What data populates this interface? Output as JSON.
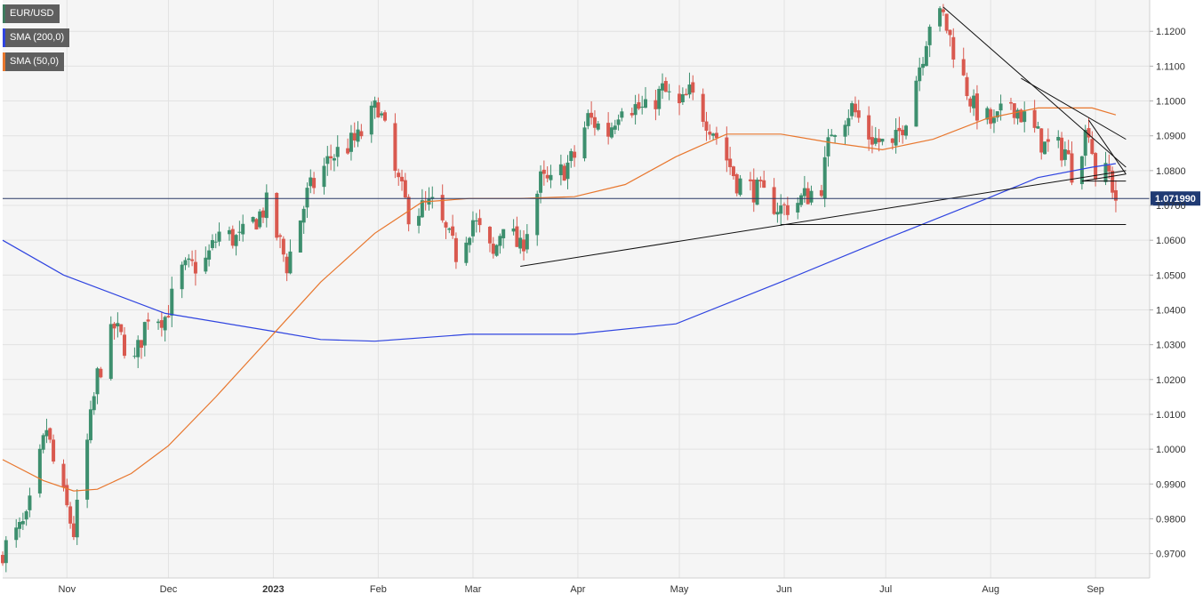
{
  "legend": [
    {
      "label": "EUR/USD",
      "color": "#3d7a5e"
    },
    {
      "label": "SMA (200,0)",
      "color": "#2f44e0"
    },
    {
      "label": "SMA (50,0)",
      "color": "#e8772e"
    }
  ],
  "price_label": "1.071990",
  "chart_data": {
    "type": "candlestick",
    "ylim": [
      0.963,
      1.129
    ],
    "yticks": [
      {
        "value": 0.97,
        "label": "0.9700"
      },
      {
        "value": 0.98,
        "label": "0.9800"
      },
      {
        "value": 0.99,
        "label": "0.9900"
      },
      {
        "value": 1.0,
        "label": "1.0000"
      },
      {
        "value": 1.01,
        "label": "1.0100"
      },
      {
        "value": 1.02,
        "label": "1.0200"
      },
      {
        "value": 1.03,
        "label": "1.0300"
      },
      {
        "value": 1.04,
        "label": "1.0400"
      },
      {
        "value": 1.05,
        "label": "1.0500"
      },
      {
        "value": 1.06,
        "label": "1.0600"
      },
      {
        "value": 1.07,
        "label": "1.0700"
      },
      {
        "value": 1.08,
        "label": "1.0800"
      },
      {
        "value": 1.09,
        "label": "1.0900"
      },
      {
        "value": 1.1,
        "label": "1.1000"
      },
      {
        "value": 1.11,
        "label": "1.1100"
      },
      {
        "value": 1.12,
        "label": "1.1200"
      }
    ],
    "xlim": [
      "2022-10-13",
      "2023-09-17"
    ],
    "xticks": [
      {
        "date": "2022-11-01",
        "label": "Nov",
        "bold": false
      },
      {
        "date": "2022-12-01",
        "label": "Dec",
        "bold": false
      },
      {
        "date": "2023-01-01",
        "label": "2023",
        "bold": true
      },
      {
        "date": "2023-02-01",
        "label": "Feb",
        "bold": false
      },
      {
        "date": "2023-03-01",
        "label": "Mar",
        "bold": false
      },
      {
        "date": "2023-04-01",
        "label": "Apr",
        "bold": false
      },
      {
        "date": "2023-05-01",
        "label": "May",
        "bold": false
      },
      {
        "date": "2023-06-01",
        "label": "Jun",
        "bold": false
      },
      {
        "date": "2023-07-01",
        "label": "Jul",
        "bold": false
      },
      {
        "date": "2023-08-01",
        "label": "Aug",
        "bold": false
      },
      {
        "date": "2023-09-01",
        "label": "Sep",
        "bold": false
      }
    ],
    "current_price": 1.07199,
    "up_color": "#3d8f6e",
    "down_color": "#d9594f",
    "close_path": [
      [
        "2022-10-13",
        0.971
      ],
      [
        "2022-10-20",
        0.979
      ],
      [
        "2022-10-26",
        1.006
      ],
      [
        "2022-10-28",
        0.996
      ],
      [
        "2022-11-03",
        0.976
      ],
      [
        "2022-11-10",
        1.021
      ],
      [
        "2022-11-15",
        1.035
      ],
      [
        "2022-11-21",
        1.025
      ],
      [
        "2022-11-25",
        1.039
      ],
      [
        "2022-11-30",
        1.038
      ],
      [
        "2022-12-05",
        1.051
      ],
      [
        "2022-12-12",
        1.054
      ],
      [
        "2022-12-16",
        1.062
      ],
      [
        "2022-12-22",
        1.06
      ],
      [
        "2022-12-30",
        1.07
      ],
      [
        "2023-01-05",
        1.053
      ],
      [
        "2023-01-11",
        1.073
      ],
      [
        "2023-01-18",
        1.084
      ],
      [
        "2023-01-26",
        1.089
      ],
      [
        "2023-02-01",
        1.099
      ],
      [
        "2023-02-06",
        1.079
      ],
      [
        "2023-02-10",
        1.068
      ],
      [
        "2023-02-17",
        1.07
      ],
      [
        "2023-02-24",
        1.056
      ],
      [
        "2023-03-01",
        1.066
      ],
      [
        "2023-03-07",
        1.055
      ],
      [
        "2023-03-10",
        1.066
      ],
      [
        "2023-03-15",
        1.057
      ],
      [
        "2023-03-21",
        1.077
      ],
      [
        "2023-03-24",
        1.076
      ],
      [
        "2023-03-31",
        1.084
      ],
      [
        "2023-04-04",
        1.095
      ],
      [
        "2023-04-10",
        1.091
      ],
      [
        "2023-04-14",
        1.1
      ],
      [
        "2023-04-21",
        1.097
      ],
      [
        "2023-04-26",
        1.103
      ],
      [
        "2023-05-01",
        1.098
      ],
      [
        "2023-05-04",
        1.102
      ],
      [
        "2023-05-11",
        1.092
      ],
      [
        "2023-05-18",
        1.077
      ],
      [
        "2023-05-24",
        1.074
      ],
      [
        "2023-05-31",
        1.069
      ],
      [
        "2023-06-05",
        1.071
      ],
      [
        "2023-06-12",
        1.076
      ],
      [
        "2023-06-15",
        1.092
      ],
      [
        "2023-06-21",
        1.098
      ],
      [
        "2023-06-26",
        1.09
      ],
      [
        "2023-07-03",
        1.086
      ],
      [
        "2023-07-07",
        1.096
      ],
      [
        "2023-07-12",
        1.114
      ],
      [
        "2023-07-14",
        1.123
      ],
      [
        "2023-07-18",
        1.124
      ],
      [
        "2023-07-24",
        1.106
      ],
      [
        "2023-07-27",
        1.098
      ],
      [
        "2023-08-02",
        1.093
      ],
      [
        "2023-08-07",
        1.1
      ],
      [
        "2023-08-11",
        1.095
      ],
      [
        "2023-08-17",
        1.087
      ],
      [
        "2023-08-23",
        1.086
      ],
      [
        "2023-08-25",
        1.08
      ],
      [
        "2023-08-30",
        1.093
      ],
      [
        "2023-09-01",
        1.079
      ],
      [
        "2023-09-05",
        1.079
      ],
      [
        "2023-09-07",
        1.072
      ]
    ],
    "sma200": [
      [
        "2022-10-13",
        1.06
      ],
      [
        "2022-10-31",
        1.05
      ],
      [
        "2022-11-30",
        1.039
      ],
      [
        "2022-12-31",
        1.034
      ],
      [
        "2023-01-15",
        1.0315
      ],
      [
        "2023-01-31",
        1.031
      ],
      [
        "2023-02-28",
        1.033
      ],
      [
        "2023-03-31",
        1.033
      ],
      [
        "2023-04-30",
        1.036
      ],
      [
        "2023-05-31",
        1.048
      ],
      [
        "2023-06-30",
        1.06
      ],
      [
        "2023-07-31",
        1.072
      ],
      [
        "2023-08-15",
        1.078
      ],
      [
        "2023-08-31",
        1.081
      ],
      [
        "2023-09-07",
        1.082
      ]
    ],
    "sma50": [
      [
        "2022-10-13",
        0.997
      ],
      [
        "2022-10-25",
        0.991
      ],
      [
        "2022-11-03",
        0.988
      ],
      [
        "2022-11-10",
        0.9885
      ],
      [
        "2022-11-20",
        0.993
      ],
      [
        "2022-12-01",
        1.001
      ],
      [
        "2022-12-15",
        1.015
      ],
      [
        "2022-12-31",
        1.032
      ],
      [
        "2023-01-15",
        1.048
      ],
      [
        "2023-01-31",
        1.062
      ],
      [
        "2023-02-14",
        1.071
      ],
      [
        "2023-02-28",
        1.072
      ],
      [
        "2023-03-15",
        1.072
      ],
      [
        "2023-03-31",
        1.0725
      ],
      [
        "2023-04-15",
        1.076
      ],
      [
        "2023-04-30",
        1.084
      ],
      [
        "2023-05-15",
        1.0905
      ],
      [
        "2023-05-31",
        1.0905
      ],
      [
        "2023-06-15",
        1.088
      ],
      [
        "2023-06-30",
        1.086
      ],
      [
        "2023-07-15",
        1.089
      ],
      [
        "2023-07-31",
        1.095
      ],
      [
        "2023-08-15",
        1.098
      ],
      [
        "2023-08-31",
        1.098
      ],
      [
        "2023-09-07",
        1.096
      ]
    ],
    "trendlines": [
      {
        "from": [
          "2023-03-15",
          1.0525
        ],
        "to": [
          "2023-09-10",
          1.08
        ]
      },
      {
        "from": [
          "2023-05-31",
          1.0645
        ],
        "to": [
          "2023-09-10",
          1.0645
        ]
      },
      {
        "from": [
          "2023-07-18",
          1.127
        ],
        "to": [
          "2023-09-10",
          1.081
        ]
      },
      {
        "from": [
          "2023-08-10",
          1.1065
        ],
        "to": [
          "2023-09-10",
          1.089
        ]
      },
      {
        "from": [
          "2023-08-30",
          1.0945
        ],
        "to": [
          "2023-09-10",
          1.079
        ]
      },
      {
        "from": [
          "2023-08-28",
          1.077
        ],
        "to": [
          "2023-09-10",
          1.079
        ]
      },
      {
        "from": [
          "2023-08-28",
          1.077
        ],
        "to": [
          "2023-09-10",
          1.077
        ]
      }
    ]
  }
}
